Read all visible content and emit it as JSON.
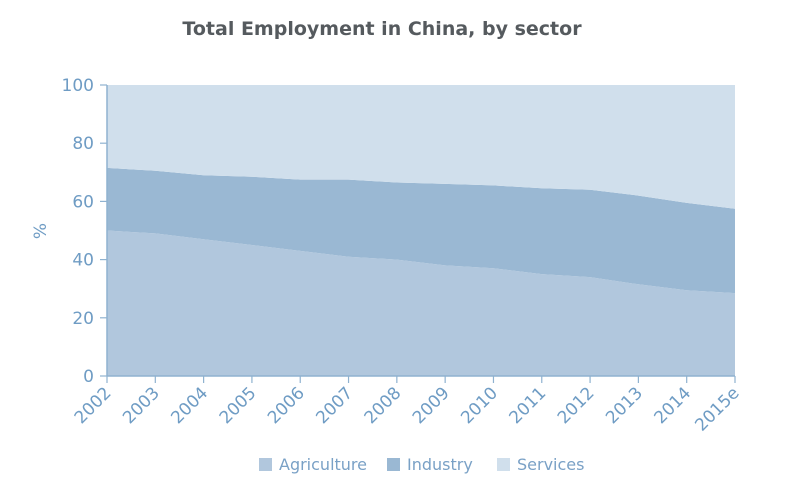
{
  "chart_data": {
    "type": "area",
    "stacked": true,
    "title": "Total Employment in China, by sector",
    "ylabel": "%",
    "xlabel": "",
    "ylim": [
      0,
      100
    ],
    "yticks": [
      0,
      20,
      40,
      60,
      80,
      100
    ],
    "categories": [
      "2002",
      "2003",
      "2004",
      "2005",
      "2006",
      "2007",
      "2008",
      "2009",
      "2010",
      "2011",
      "2012",
      "2013",
      "2014",
      "2015e"
    ],
    "series": [
      {
        "name": "Agriculture",
        "color": "#b1c7dd",
        "values": [
          50,
          49,
          47,
          45,
          43,
          41,
          40,
          38,
          37,
          35,
          34,
          31.5,
          29.5,
          28.5
        ]
      },
      {
        "name": "Industry",
        "color": "#9ab8d3",
        "values": [
          21.5,
          21.5,
          22,
          23.5,
          24.5,
          26.5,
          26.5,
          28,
          28.5,
          29.5,
          30,
          30.5,
          30,
          29
        ]
      },
      {
        "name": "Services",
        "color": "#d0dfec",
        "values": [
          28.5,
          29.5,
          31,
          31.5,
          32.5,
          32.5,
          33.5,
          34,
          34.5,
          35.5,
          36,
          38,
          40.5,
          42.5
        ]
      }
    ],
    "grid": false,
    "legend_position": "bottom"
  }
}
